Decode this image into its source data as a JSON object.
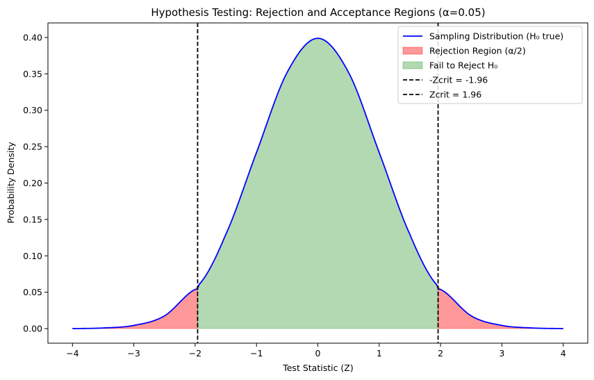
{
  "chart_data": {
    "type": "area",
    "title": "Hypothesis Testing: Rejection and Acceptance Regions (α=0.05)",
    "xlabel": "Test Statistic (Z)",
    "ylabel": "Probability Density",
    "xlim": [
      -4.4,
      4.4
    ],
    "ylim": [
      -0.02,
      0.42
    ],
    "x_ticks": [
      {
        "value": -4,
        "label": "−4"
      },
      {
        "value": -3,
        "label": "−3"
      },
      {
        "value": -2,
        "label": "−2"
      },
      {
        "value": -1,
        "label": "−1"
      },
      {
        "value": 0,
        "label": "0"
      },
      {
        "value": 1,
        "label": "1"
      },
      {
        "value": 2,
        "label": "2"
      },
      {
        "value": 3,
        "label": "3"
      },
      {
        "value": 4,
        "label": "4"
      }
    ],
    "y_ticks": [
      {
        "value": 0.0,
        "label": "0.00"
      },
      {
        "value": 0.05,
        "label": "0.05"
      },
      {
        "value": 0.1,
        "label": "0.10"
      },
      {
        "value": 0.15,
        "label": "0.15"
      },
      {
        "value": 0.2,
        "label": "0.20"
      },
      {
        "value": 0.25,
        "label": "0.25"
      },
      {
        "value": 0.3,
        "label": "0.30"
      },
      {
        "value": 0.35,
        "label": "0.35"
      },
      {
        "value": 0.4,
        "label": "0.40"
      }
    ],
    "grid": false,
    "legend_position": "top-right",
    "distribution": {
      "x": [
        -4.0,
        -3.5,
        -3.0,
        -2.5,
        -2.0,
        -1.96,
        -1.5,
        -1.0,
        -0.5,
        0.0,
        0.5,
        1.0,
        1.5,
        1.96,
        2.0,
        2.5,
        3.0,
        3.5,
        4.0
      ],
      "y": [
        0.0001,
        0.0009,
        0.0044,
        0.0175,
        0.054,
        0.0584,
        0.1295,
        0.242,
        0.3521,
        0.3989,
        0.3521,
        0.242,
        0.1295,
        0.0584,
        0.054,
        0.0175,
        0.0044,
        0.0009,
        0.0001
      ]
    },
    "series": [
      {
        "name": "Sampling Distribution (H₀ true)",
        "kind": "line",
        "color": "#0000ff"
      },
      {
        "name": "Rejection Region (α/2)",
        "kind": "fill",
        "color": "#ff0000",
        "alpha": 0.4,
        "ranges": [
          [
            -4,
            -1.96
          ],
          [
            1.96,
            4
          ]
        ]
      },
      {
        "name": "Fail to Reject H₀",
        "kind": "fill",
        "color": "#008000",
        "alpha": 0.3,
        "ranges": [
          [
            -1.96,
            1.96
          ]
        ]
      },
      {
        "name": "-Zcrit = -1.96",
        "kind": "vline",
        "x": -1.96,
        "color": "#000000",
        "dash": true
      },
      {
        "name": "Zcrit = 1.96",
        "kind": "vline",
        "x": 1.96,
        "color": "#000000",
        "dash": true
      }
    ]
  }
}
